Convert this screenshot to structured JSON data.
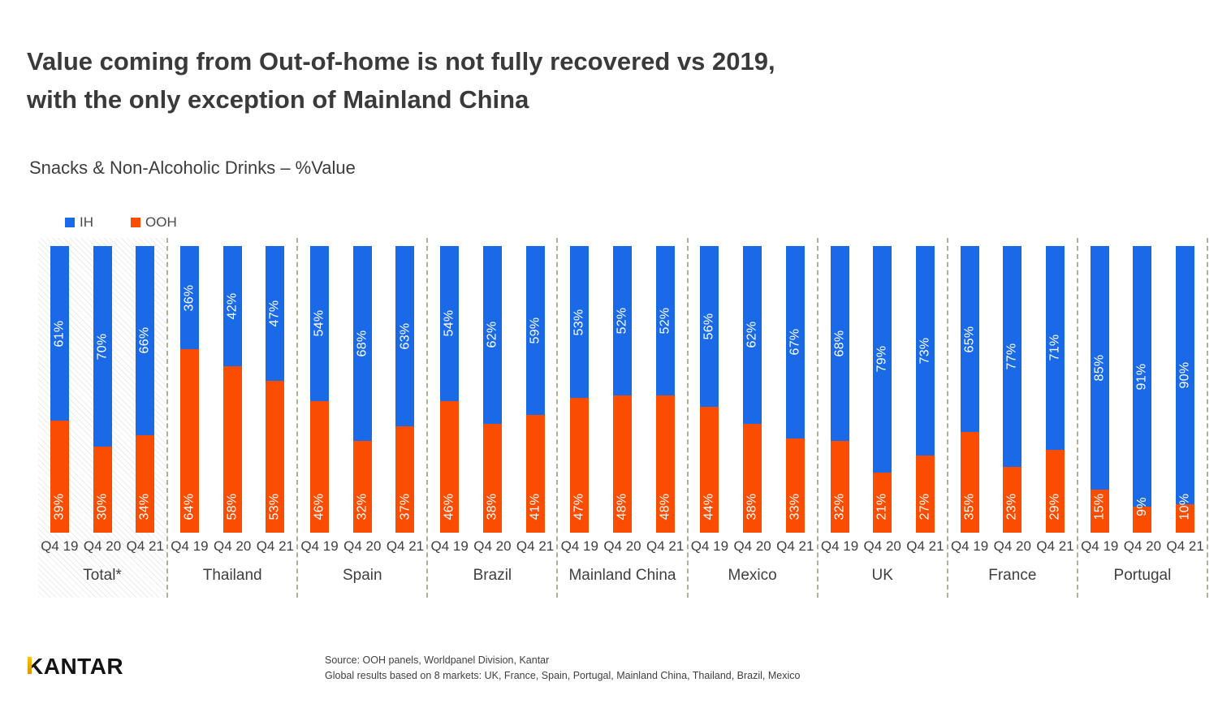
{
  "title": {
    "line1": "Value coming from Out-of-home is not fully recovered vs 2019,",
    "line2": "with the only exception of Mainland China"
  },
  "subtitle": "Snacks & Non-Alcoholic Drinks – %Value",
  "legend": [
    {
      "label": "IH",
      "color": "#1a6ae8"
    },
    {
      "label": "OOH",
      "color": "#fb4d00"
    }
  ],
  "chart_data": {
    "type": "bar",
    "stacked": true,
    "unit": "%",
    "ylim": [
      0,
      100
    ],
    "grid": false,
    "legend_position": "top-left",
    "quarters": [
      "Q4 19",
      "Q4 20",
      "Q4 21"
    ],
    "series_names": [
      "IH",
      "OOH"
    ],
    "colors": {
      "ih": "#1a6ae8",
      "ooh": "#fb4d00"
    },
    "groups": [
      {
        "label": "Total*",
        "highlight": true,
        "ih": [
          61,
          70,
          66
        ],
        "ooh": [
          39,
          30,
          34
        ]
      },
      {
        "label": "Thailand",
        "highlight": false,
        "ih": [
          36,
          42,
          47
        ],
        "ooh": [
          64,
          58,
          53
        ]
      },
      {
        "label": "Spain",
        "highlight": false,
        "ih": [
          54,
          68,
          63
        ],
        "ooh": [
          46,
          32,
          37
        ]
      },
      {
        "label": "Brazil",
        "highlight": false,
        "ih": [
          54,
          62,
          59
        ],
        "ooh": [
          46,
          38,
          41
        ]
      },
      {
        "label": "Mainland China",
        "highlight": false,
        "ih": [
          53,
          52,
          52
        ],
        "ooh": [
          47,
          48,
          48
        ]
      },
      {
        "label": "Mexico",
        "highlight": false,
        "ih": [
          56,
          62,
          67
        ],
        "ooh": [
          44,
          38,
          33
        ]
      },
      {
        "label": "UK",
        "highlight": false,
        "ih": [
          68,
          79,
          73
        ],
        "ooh": [
          32,
          21,
          27
        ]
      },
      {
        "label": "France",
        "highlight": false,
        "ih": [
          65,
          77,
          71
        ],
        "ooh": [
          35,
          23,
          29
        ]
      },
      {
        "label": "Portugal",
        "highlight": false,
        "ih": [
          85,
          91,
          90
        ],
        "ooh": [
          15,
          9,
          10
        ]
      }
    ]
  },
  "footer": {
    "logo_text": "KANTAR",
    "source_line1": "Source: OOH panels, Worldpanel Division, Kantar",
    "source_line2": "Global results based on 8 markets: UK, France, Spain, Portugal, Mainland China, Thailand, Brazil, Mexico"
  }
}
